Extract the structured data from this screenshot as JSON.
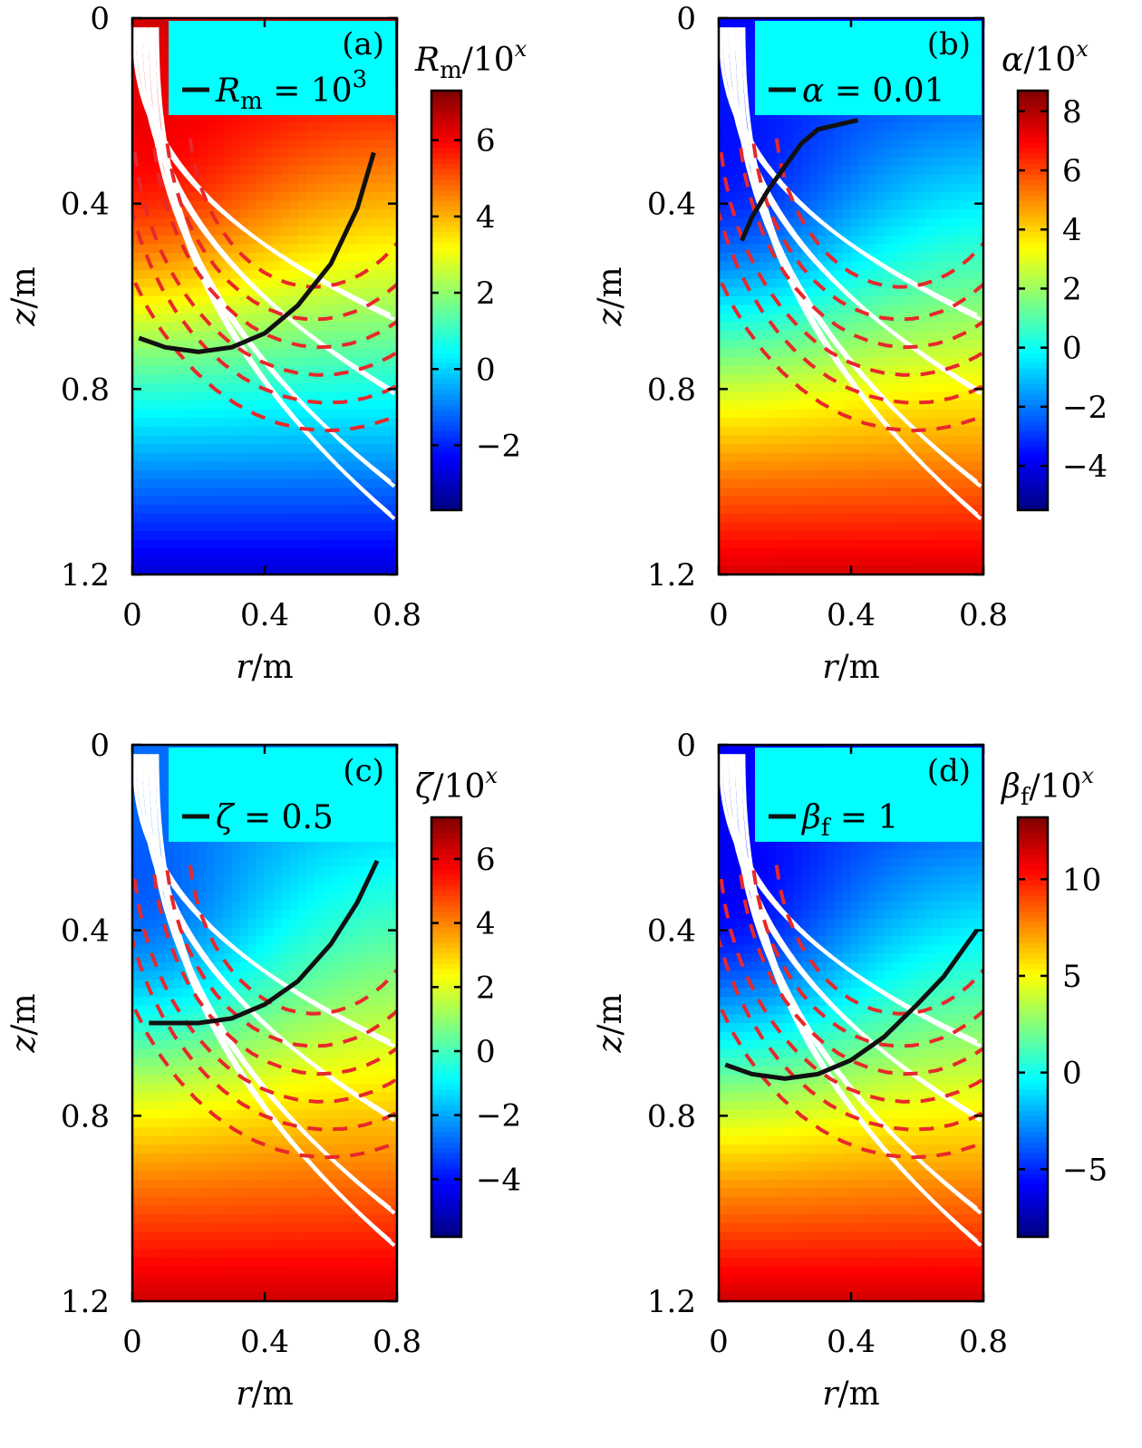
{
  "chart_data": [
    {
      "panel": "(a)",
      "type": "heatmap",
      "xlabel": "r/m",
      "ylabel": "z/m",
      "x_ticks": [
        "0",
        "0.4",
        "0.8"
      ],
      "y_ticks": [
        "0",
        "0.4",
        "0.8",
        "1.2"
      ],
      "xlim": [
        0,
        0.8
      ],
      "ylim": [
        0,
        1.2
      ],
      "y_inverted": true,
      "colorbar": {
        "label": "R_m/10^x",
        "label_var": "R",
        "label_sub": "m",
        "label_tail": "/10",
        "label_sup": "x",
        "range": [
          -3.7,
          7.3
        ],
        "ticks": [
          "-2",
          "0",
          "2",
          "4",
          "6"
        ],
        "tick_values": [
          -2,
          0,
          2,
          4,
          6
        ]
      },
      "field": {
        "kind": "Rm",
        "top_value": 6.8,
        "bottom_value": -2.8,
        "core_value": 6.2,
        "core_z": 0.22
      },
      "legend": {
        "var": "R",
        "sub": "m",
        "eq": " = 10",
        "sup": "3"
      },
      "contour": [
        [
          0.02,
          0.69
        ],
        [
          0.1,
          0.71
        ],
        [
          0.2,
          0.72
        ],
        [
          0.3,
          0.71
        ],
        [
          0.4,
          0.68
        ],
        [
          0.5,
          0.62
        ],
        [
          0.6,
          0.53
        ],
        [
          0.68,
          0.41
        ],
        [
          0.73,
          0.29
        ]
      ]
    },
    {
      "panel": "(b)",
      "type": "heatmap",
      "xlabel": "r/m",
      "ylabel": "z/m",
      "x_ticks": [
        "0",
        "0.4",
        "0.8"
      ],
      "y_ticks": [
        "0",
        "0.4",
        "0.8",
        "1.2"
      ],
      "xlim": [
        0,
        0.8
      ],
      "ylim": [
        0,
        1.2
      ],
      "y_inverted": true,
      "colorbar": {
        "label": "α/10^x",
        "label_var": "α",
        "label_sub": "",
        "label_tail": "/10",
        "label_sup": "x",
        "range": [
          -5.5,
          8.7
        ],
        "ticks": [
          "-4",
          "-2",
          "0",
          "2",
          "4",
          "6",
          "8"
        ],
        "tick_values": [
          -4,
          -2,
          0,
          2,
          4,
          6,
          8
        ]
      },
      "field": {
        "kind": "alpha",
        "top_value": -3.6,
        "bottom_value": 7.5,
        "core_value": -3.8,
        "core_z": 0.3
      },
      "legend": {
        "var": "α",
        "sub": "",
        "eq": " = 0.01",
        "sup": ""
      },
      "contour": [
        [
          0.07,
          0.48
        ],
        [
          0.1,
          0.43
        ],
        [
          0.15,
          0.37
        ],
        [
          0.2,
          0.32
        ],
        [
          0.25,
          0.27
        ],
        [
          0.3,
          0.24
        ],
        [
          0.36,
          0.23
        ],
        [
          0.42,
          0.22
        ]
      ]
    },
    {
      "panel": "(c)",
      "type": "heatmap",
      "xlabel": "r/m",
      "ylabel": "z/m",
      "x_ticks": [
        "0",
        "0.4",
        "0.8"
      ],
      "y_ticks": [
        "0",
        "0.4",
        "0.8",
        "1.2"
      ],
      "xlim": [
        0,
        0.8
      ],
      "ylim": [
        0,
        1.2
      ],
      "y_inverted": true,
      "colorbar": {
        "label": "ζ/10^x",
        "label_var": "ζ",
        "label_sub": "",
        "label_tail": "/10",
        "label_sup": "x",
        "range": [
          -5.8,
          7.3
        ],
        "ticks": [
          "-4",
          "-2",
          "0",
          "2",
          "4",
          "6"
        ],
        "tick_values": [
          -4,
          -2,
          0,
          2,
          4,
          6
        ]
      },
      "field": {
        "kind": "zeta",
        "top_value": -2.4,
        "bottom_value": 6.3,
        "core_value": -3.3,
        "core_z": 0.3
      },
      "legend": {
        "var": "ζ",
        "sub": "",
        "eq": " = 0.5",
        "sup": ""
      },
      "contour": [
        [
          0.05,
          0.6
        ],
        [
          0.1,
          0.6
        ],
        [
          0.2,
          0.6
        ],
        [
          0.3,
          0.59
        ],
        [
          0.4,
          0.56
        ],
        [
          0.5,
          0.51
        ],
        [
          0.6,
          0.43
        ],
        [
          0.68,
          0.34
        ],
        [
          0.74,
          0.25
        ]
      ]
    },
    {
      "panel": "(d)",
      "type": "heatmap",
      "xlabel": "r/m",
      "ylabel": "z/m",
      "x_ticks": [
        "0",
        "0.4",
        "0.8"
      ],
      "y_ticks": [
        "0",
        "0.4",
        "0.8",
        "1.2"
      ],
      "xlim": [
        0,
        0.8
      ],
      "ylim": [
        0,
        1.2
      ],
      "y_inverted": true,
      "colorbar": {
        "label": "β_f/10^x",
        "label_var": "β",
        "label_sub": "f",
        "label_tail": "/10",
        "label_sup": "x",
        "range": [
          -8.5,
          13.2
        ],
        "ticks": [
          "-5",
          "0",
          "5",
          "10"
        ],
        "tick_values": [
          -5,
          0,
          5,
          10
        ]
      },
      "field": {
        "kind": "beta",
        "top_value": -5.5,
        "bottom_value": 11.5,
        "core_value": -6.5,
        "core_z": 0.3
      },
      "legend": {
        "var": "β",
        "sub": "f",
        "eq": " = 1",
        "sup": ""
      },
      "contour": [
        [
          0.02,
          0.69
        ],
        [
          0.1,
          0.71
        ],
        [
          0.2,
          0.72
        ],
        [
          0.3,
          0.71
        ],
        [
          0.4,
          0.68
        ],
        [
          0.5,
          0.63
        ],
        [
          0.6,
          0.56
        ],
        [
          0.68,
          0.5
        ],
        [
          0.74,
          0.44
        ],
        [
          0.78,
          0.4
        ]
      ]
    }
  ]
}
